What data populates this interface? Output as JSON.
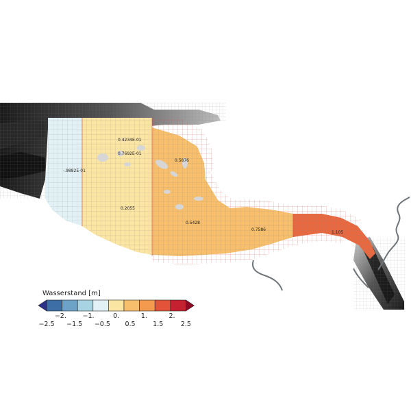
{
  "map": {
    "value_labels": [
      {
        "id": "west",
        "text": "-.9882E-01"
      },
      {
        "id": "north-1",
        "text": "0.4234E-01"
      },
      {
        "id": "north-2",
        "text": "0.7692E-01"
      },
      {
        "id": "center-yellow",
        "text": "0.2055"
      },
      {
        "id": "north-east",
        "text": "0.5876"
      },
      {
        "id": "center-orange",
        "text": "0.5428"
      },
      {
        "id": "east",
        "text": "0.7586"
      },
      {
        "id": "far-east",
        "text": "1.105"
      }
    ]
  },
  "colorbar": {
    "title": "Wasserstand [m]",
    "colors": [
      "#2c2f8c",
      "#3e6ea6",
      "#6ea3c8",
      "#a7d3e2",
      "#e2f1f6",
      "#fbe5a3",
      "#f7bf6c",
      "#f39a4e",
      "#e2533a",
      "#c62130",
      "#8f0a24"
    ],
    "lower_ticks": [
      "−2.5",
      "−1.5",
      "−0.5",
      "0.5",
      "1.5",
      "2.5"
    ],
    "upper_ticks": [
      "−2.",
      "−1.",
      "0.",
      "1.",
      "2."
    ]
  }
}
